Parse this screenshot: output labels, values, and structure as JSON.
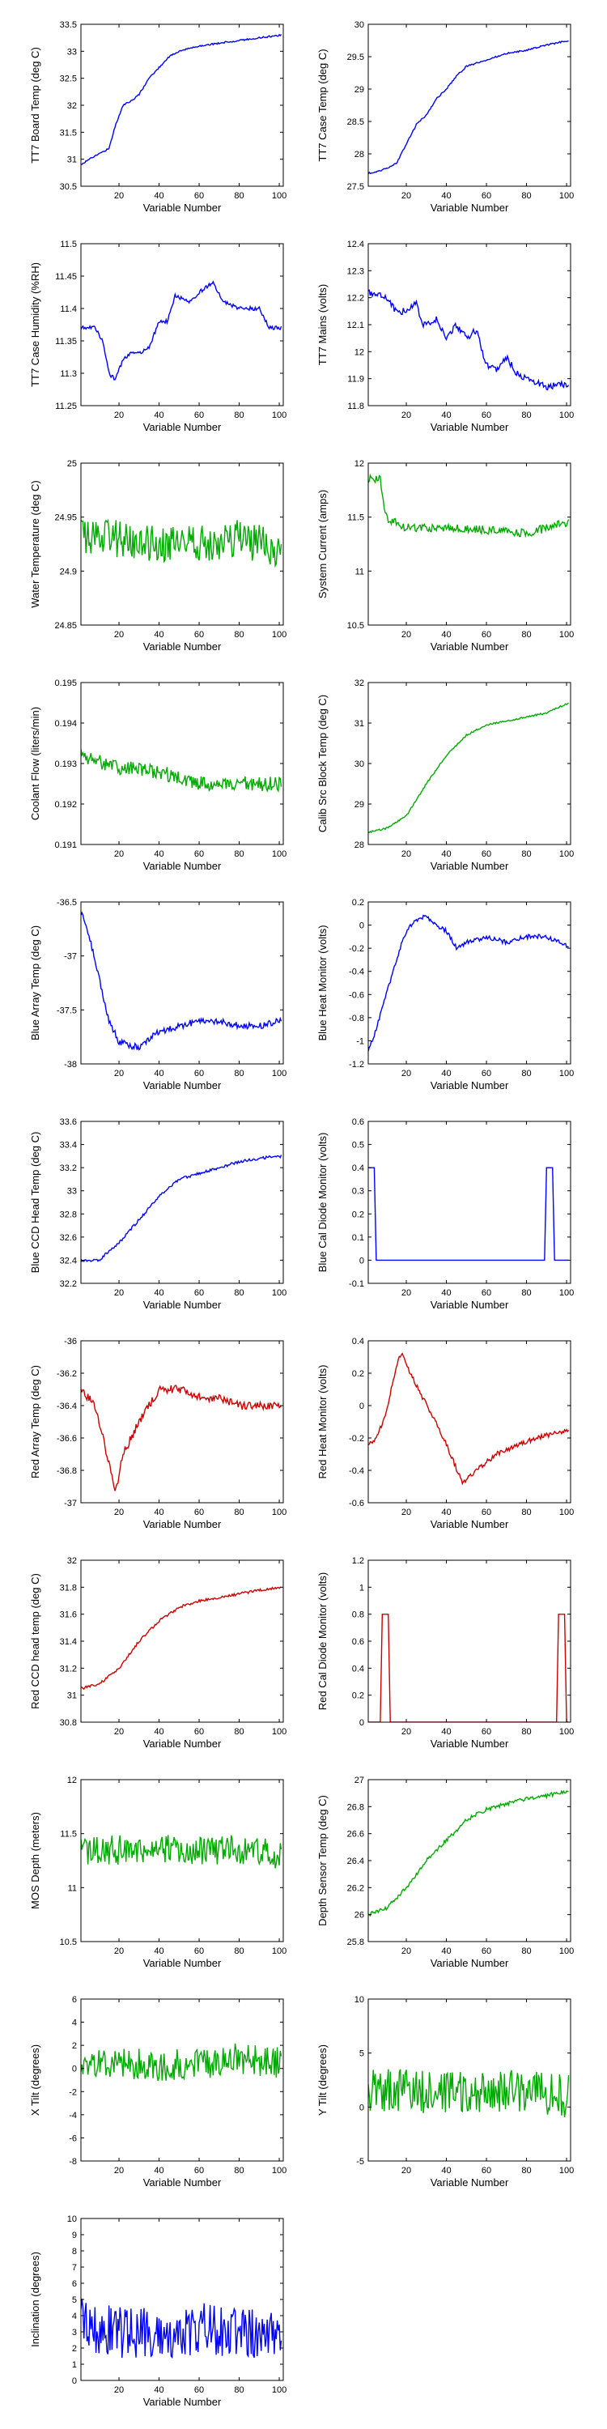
{
  "figure": {
    "xlabel": "Variable Number",
    "xlim": [
      1,
      102
    ],
    "xticks": [
      20,
      40,
      60,
      80,
      100
    ]
  },
  "colors": {
    "blue": "#0000ff",
    "green": "#00aa00",
    "red": "#cc0000"
  },
  "chart_data": [
    {
      "id": "tt7-board-temp",
      "type": "line",
      "ylabel": "TT7 Board Temp (deg C)",
      "ylim": [
        30.5,
        33.5
      ],
      "yticks": [
        30.5,
        31,
        31.5,
        32,
        32.5,
        33,
        33.5
      ],
      "color": "blue",
      "noise": 0.015,
      "points": [
        [
          1,
          30.9
        ],
        [
          5,
          31.0
        ],
        [
          10,
          31.1
        ],
        [
          15,
          31.2
        ],
        [
          18,
          31.6
        ],
        [
          22,
          32.0
        ],
        [
          27,
          32.1
        ],
        [
          30,
          32.2
        ],
        [
          35,
          32.5
        ],
        [
          40,
          32.7
        ],
        [
          45,
          32.9
        ],
        [
          50,
          33.0
        ],
        [
          60,
          33.1
        ],
        [
          70,
          33.15
        ],
        [
          80,
          33.2
        ],
        [
          90,
          33.25
        ],
        [
          101,
          33.3
        ]
      ]
    },
    {
      "id": "tt7-case-temp",
      "type": "line",
      "ylabel": "TT7 Case Temp (deg C)",
      "ylim": [
        27.5,
        30
      ],
      "yticks": [
        27.5,
        28,
        28.5,
        29,
        29.5,
        30
      ],
      "color": "blue",
      "noise": 0.012,
      "points": [
        [
          1,
          27.7
        ],
        [
          8,
          27.75
        ],
        [
          15,
          27.85
        ],
        [
          20,
          28.15
        ],
        [
          25,
          28.45
        ],
        [
          30,
          28.6
        ],
        [
          35,
          28.85
        ],
        [
          40,
          29.0
        ],
        [
          45,
          29.2
        ],
        [
          50,
          29.35
        ],
        [
          60,
          29.45
        ],
        [
          70,
          29.55
        ],
        [
          80,
          29.6
        ],
        [
          90,
          29.68
        ],
        [
          101,
          29.75
        ]
      ]
    },
    {
      "id": "tt7-case-humidity",
      "type": "line",
      "ylabel": "TT7 Case Humidity (%RH)",
      "ylim": [
        11.25,
        11.5
      ],
      "yticks": [
        11.25,
        11.3,
        11.35,
        11.4,
        11.45,
        11.5
      ],
      "color": "blue",
      "noise": 0.003,
      "points": [
        [
          1,
          11.37
        ],
        [
          8,
          11.37
        ],
        [
          12,
          11.35
        ],
        [
          15,
          11.3
        ],
        [
          18,
          11.29
        ],
        [
          22,
          11.32
        ],
        [
          26,
          11.33
        ],
        [
          30,
          11.33
        ],
        [
          35,
          11.34
        ],
        [
          40,
          11.38
        ],
        [
          44,
          11.38
        ],
        [
          48,
          11.42
        ],
        [
          55,
          11.41
        ],
        [
          62,
          11.43
        ],
        [
          67,
          11.44
        ],
        [
          72,
          11.41
        ],
        [
          80,
          11.4
        ],
        [
          90,
          11.4
        ],
        [
          95,
          11.37
        ],
        [
          101,
          11.37
        ]
      ]
    },
    {
      "id": "tt7-mains",
      "type": "line",
      "ylabel": "TT7 Mains  (volts)",
      "ylim": [
        11.8,
        12.4
      ],
      "yticks": [
        11.8,
        11.9,
        12,
        12.1,
        12.2,
        12.3,
        12.4
      ],
      "color": "blue",
      "noise": 0.012,
      "points": [
        [
          1,
          12.22
        ],
        [
          10,
          12.2
        ],
        [
          15,
          12.15
        ],
        [
          20,
          12.15
        ],
        [
          25,
          12.18
        ],
        [
          28,
          12.1
        ],
        [
          35,
          12.12
        ],
        [
          40,
          12.05
        ],
        [
          45,
          12.1
        ],
        [
          50,
          12.05
        ],
        [
          55,
          12.08
        ],
        [
          60,
          11.95
        ],
        [
          65,
          11.93
        ],
        [
          70,
          11.98
        ],
        [
          75,
          11.92
        ],
        [
          80,
          11.9
        ],
        [
          90,
          11.87
        ],
        [
          101,
          11.88
        ]
      ]
    },
    {
      "id": "water-temperature",
      "type": "line",
      "ylabel": "Water Temperature (deg C)",
      "ylim": [
        24.85,
        25
      ],
      "yticks": [
        24.85,
        24.9,
        24.95,
        25
      ],
      "color": "green",
      "noise": 0.018,
      "points": [
        [
          1,
          24.93
        ],
        [
          20,
          24.93
        ],
        [
          40,
          24.925
        ],
        [
          60,
          24.925
        ],
        [
          80,
          24.93
        ],
        [
          101,
          24.92
        ]
      ]
    },
    {
      "id": "system-current",
      "type": "line",
      "ylabel": "System Current (amps)",
      "ylim": [
        10.5,
        12
      ],
      "yticks": [
        10.5,
        11,
        11.5,
        12
      ],
      "color": "green",
      "noise": 0.04,
      "points": [
        [
          1,
          11.85
        ],
        [
          7,
          11.85
        ],
        [
          10,
          11.5
        ],
        [
          20,
          11.4
        ],
        [
          40,
          11.4
        ],
        [
          60,
          11.38
        ],
        [
          80,
          11.35
        ],
        [
          101,
          11.45
        ]
      ]
    },
    {
      "id": "coolant-flow",
      "type": "line",
      "ylabel": "Coolant Flow (liters/min)",
      "ylim": [
        0.191,
        0.195
      ],
      "yticks": [
        0.191,
        0.192,
        0.193,
        0.194,
        0.195
      ],
      "color": "green",
      "noise": 0.00018,
      "points": [
        [
          1,
          0.1932
        ],
        [
          20,
          0.1929
        ],
        [
          40,
          0.1928
        ],
        [
          60,
          0.1925
        ],
        [
          80,
          0.1925
        ],
        [
          101,
          0.1925
        ]
      ]
    },
    {
      "id": "calib-src-block-temp",
      "type": "line",
      "ylabel": "Calib Src Block Temp (deg C)",
      "ylim": [
        28,
        32
      ],
      "yticks": [
        28,
        29,
        30,
        31,
        32
      ],
      "color": "green",
      "noise": 0.02,
      "points": [
        [
          1,
          28.3
        ],
        [
          10,
          28.4
        ],
        [
          20,
          28.7
        ],
        [
          30,
          29.5
        ],
        [
          40,
          30.2
        ],
        [
          50,
          30.7
        ],
        [
          60,
          30.95
        ],
        [
          70,
          31.05
        ],
        [
          80,
          31.15
        ],
        [
          90,
          31.25
        ],
        [
          101,
          31.5
        ]
      ]
    },
    {
      "id": "blue-array-temp",
      "type": "line",
      "ylabel": "Blue Array Temp (deg C)",
      "ylim": [
        -38,
        -36.5
      ],
      "yticks": [
        -38,
        -37.5,
        -37,
        -36.5
      ],
      "color": "blue",
      "noise": 0.03,
      "points": [
        [
          1,
          -36.6
        ],
        [
          5,
          -36.8
        ],
        [
          10,
          -37.2
        ],
        [
          15,
          -37.6
        ],
        [
          20,
          -37.8
        ],
        [
          30,
          -37.85
        ],
        [
          40,
          -37.7
        ],
        [
          50,
          -37.65
        ],
        [
          60,
          -37.6
        ],
        [
          70,
          -37.6
        ],
        [
          80,
          -37.65
        ],
        [
          90,
          -37.65
        ],
        [
          101,
          -37.6
        ]
      ]
    },
    {
      "id": "blue-heat-monitor",
      "type": "line",
      "ylabel": "Blue Heat Monitor (volts)",
      "ylim": [
        -1.2,
        0.2
      ],
      "yticks": [
        -1.2,
        -1,
        -0.8,
        -0.6,
        -0.4,
        -0.2,
        0,
        0.2
      ],
      "color": "blue",
      "noise": 0.02,
      "points": [
        [
          1,
          -1.1
        ],
        [
          5,
          -0.9
        ],
        [
          10,
          -0.6
        ],
        [
          15,
          -0.3
        ],
        [
          20,
          -0.05
        ],
        [
          25,
          0.05
        ],
        [
          30,
          0.08
        ],
        [
          35,
          0.0
        ],
        [
          40,
          -0.05
        ],
        [
          45,
          -0.2
        ],
        [
          50,
          -0.15
        ],
        [
          60,
          -0.1
        ],
        [
          70,
          -0.15
        ],
        [
          80,
          -0.1
        ],
        [
          90,
          -0.1
        ],
        [
          101,
          -0.18
        ]
      ]
    },
    {
      "id": "blue-ccd-head-temp",
      "type": "line",
      "ylabel": "Blue CCD Head Temp (deg C)",
      "ylim": [
        32.2,
        33.6
      ],
      "yticks": [
        32.2,
        32.4,
        32.6,
        32.8,
        33,
        33.2,
        33.4,
        33.6
      ],
      "color": "blue",
      "noise": 0.012,
      "points": [
        [
          1,
          32.4
        ],
        [
          10,
          32.4
        ],
        [
          20,
          32.55
        ],
        [
          30,
          32.75
        ],
        [
          40,
          32.95
        ],
        [
          50,
          33.1
        ],
        [
          60,
          33.15
        ],
        [
          70,
          33.2
        ],
        [
          80,
          33.25
        ],
        [
          90,
          33.28
        ],
        [
          101,
          33.3
        ]
      ]
    },
    {
      "id": "blue-cal-diode-monitor",
      "type": "line",
      "ylabel": "Blue Cal Diode Monitor (volts)",
      "ylim": [
        -0.1,
        0.6
      ],
      "yticks": [
        -0.1,
        0,
        0.1,
        0.2,
        0.3,
        0.4,
        0.5,
        0.6
      ],
      "color": "blue",
      "noise": 0,
      "points": [
        [
          1,
          0.4
        ],
        [
          4,
          0.4
        ],
        [
          5,
          0
        ],
        [
          89,
          0
        ],
        [
          90,
          0.4
        ],
        [
          93,
          0.4
        ],
        [
          94,
          0
        ],
        [
          101,
          0
        ]
      ]
    },
    {
      "id": "red-array-temp",
      "type": "line",
      "ylabel": "Red Array Temp (deg C)",
      "ylim": [
        -37,
        -36
      ],
      "yticks": [
        -37,
        -36.8,
        -36.6,
        -36.4,
        -36.2,
        -36
      ],
      "color": "red",
      "noise": 0.025,
      "points": [
        [
          1,
          -36.3
        ],
        [
          8,
          -36.4
        ],
        [
          12,
          -36.6
        ],
        [
          16,
          -36.8
        ],
        [
          18,
          -36.95
        ],
        [
          22,
          -36.7
        ],
        [
          30,
          -36.5
        ],
        [
          40,
          -36.3
        ],
        [
          50,
          -36.3
        ],
        [
          60,
          -36.35
        ],
        [
          70,
          -36.35
        ],
        [
          80,
          -36.4
        ],
        [
          90,
          -36.4
        ],
        [
          101,
          -36.4
        ]
      ]
    },
    {
      "id": "red-heat-monitor",
      "type": "line",
      "ylabel": "Red Heat Monitor (volts)",
      "ylim": [
        -0.6,
        0.4
      ],
      "yticks": [
        -0.6,
        -0.4,
        -0.2,
        0,
        0.2,
        0.4
      ],
      "color": "red",
      "noise": 0.015,
      "points": [
        [
          1,
          -0.25
        ],
        [
          5,
          -0.2
        ],
        [
          10,
          -0.05
        ],
        [
          15,
          0.25
        ],
        [
          18,
          0.33
        ],
        [
          22,
          0.2
        ],
        [
          28,
          0.05
        ],
        [
          35,
          -0.1
        ],
        [
          42,
          -0.3
        ],
        [
          48,
          -0.48
        ],
        [
          55,
          -0.4
        ],
        [
          65,
          -0.3
        ],
        [
          75,
          -0.25
        ],
        [
          85,
          -0.2
        ],
        [
          95,
          -0.17
        ],
        [
          101,
          -0.15
        ]
      ]
    },
    {
      "id": "red-ccd-head-temp",
      "type": "line",
      "ylabel": "Red CCD head temp (deg C)",
      "ylim": [
        30.8,
        32
      ],
      "yticks": [
        30.8,
        31,
        31.2,
        31.4,
        31.6,
        31.8,
        32
      ],
      "color": "red",
      "noise": 0.01,
      "points": [
        [
          1,
          31.05
        ],
        [
          10,
          31.08
        ],
        [
          20,
          31.2
        ],
        [
          30,
          31.4
        ],
        [
          40,
          31.55
        ],
        [
          50,
          31.65
        ],
        [
          60,
          31.7
        ],
        [
          70,
          31.72
        ],
        [
          80,
          31.75
        ],
        [
          90,
          31.78
        ],
        [
          101,
          31.8
        ]
      ]
    },
    {
      "id": "red-cal-diode-monitor",
      "type": "line",
      "ylabel": "Red Cal Diode Monitor (volts)",
      "ylim": [
        0,
        1.2
      ],
      "yticks": [
        0,
        0.2,
        0.4,
        0.6,
        0.8,
        1,
        1.2
      ],
      "color": "red",
      "noise": 0,
      "points": [
        [
          1,
          0
        ],
        [
          7,
          0
        ],
        [
          8,
          0.8
        ],
        [
          11,
          0.8
        ],
        [
          12,
          0
        ],
        [
          95,
          0
        ],
        [
          96,
          0.8
        ],
        [
          99,
          0.8
        ],
        [
          100,
          0
        ],
        [
          101,
          0
        ]
      ]
    },
    {
      "id": "mos-depth",
      "type": "line",
      "ylabel": "MOS Depth  (meters)",
      "ylim": [
        10.5,
        12
      ],
      "yticks": [
        10.5,
        11,
        11.5,
        12
      ],
      "color": "green",
      "noise": 0.14,
      "points": [
        [
          1,
          11.35
        ],
        [
          20,
          11.35
        ],
        [
          40,
          11.35
        ],
        [
          60,
          11.35
        ],
        [
          80,
          11.35
        ],
        [
          101,
          11.3
        ]
      ]
    },
    {
      "id": "depth-sensor-temp",
      "type": "line",
      "ylabel": "Depth Sensor Temp (deg C)",
      "ylim": [
        25.8,
        27
      ],
      "yticks": [
        25.8,
        26,
        26.2,
        26.4,
        26.6,
        26.8,
        27
      ],
      "color": "green",
      "noise": 0.015,
      "points": [
        [
          1,
          26.0
        ],
        [
          10,
          26.05
        ],
        [
          20,
          26.2
        ],
        [
          30,
          26.4
        ],
        [
          40,
          26.55
        ],
        [
          50,
          26.7
        ],
        [
          60,
          26.78
        ],
        [
          70,
          26.82
        ],
        [
          80,
          26.86
        ],
        [
          90,
          26.88
        ],
        [
          101,
          26.92
        ]
      ]
    },
    {
      "id": "x-tilt",
      "type": "line",
      "ylabel": "X Tilt  (degrees)",
      "ylim": [
        -8,
        6
      ],
      "yticks": [
        -8,
        -6,
        -4,
        -2,
        0,
        2,
        4,
        6
      ],
      "color": "green",
      "noise": 1.4,
      "points": [
        [
          1,
          0.5
        ],
        [
          20,
          0.5
        ],
        [
          40,
          0.3
        ],
        [
          60,
          0.5
        ],
        [
          80,
          0.8
        ],
        [
          101,
          0.5
        ]
      ]
    },
    {
      "id": "y-tilt",
      "type": "line",
      "ylabel": "Y Tilt  (degrees)",
      "ylim": [
        -5,
        10
      ],
      "yticks": [
        -5,
        0,
        5,
        10
      ],
      "color": "green",
      "noise": 2.0,
      "points": [
        [
          1,
          1.5
        ],
        [
          20,
          1.5
        ],
        [
          40,
          1.2
        ],
        [
          60,
          1.5
        ],
        [
          80,
          1.5
        ],
        [
          101,
          1.0
        ]
      ]
    },
    {
      "id": "inclination",
      "type": "line",
      "ylabel": "Inclination  (degrees)",
      "ylim": [
        0,
        10
      ],
      "yticks": [
        0,
        1,
        2,
        3,
        4,
        5,
        6,
        7,
        8,
        9,
        10
      ],
      "color": "blue",
      "noise": 1.6,
      "points": [
        [
          1,
          3.5
        ],
        [
          20,
          3.0
        ],
        [
          40,
          2.8
        ],
        [
          60,
          3.2
        ],
        [
          80,
          3.0
        ],
        [
          101,
          2.5
        ]
      ]
    }
  ]
}
